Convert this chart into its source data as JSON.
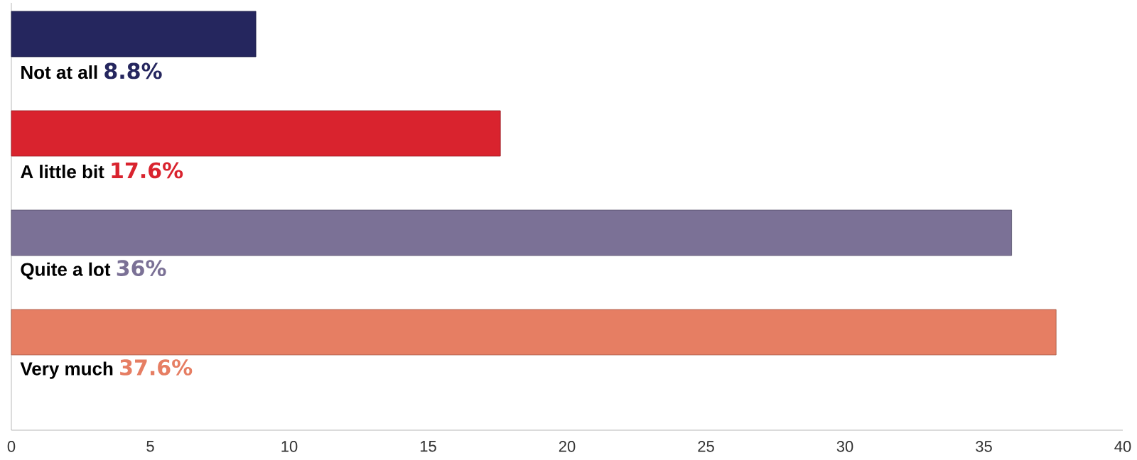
{
  "chart_data": {
    "type": "bar",
    "orientation": "horizontal",
    "categories": [
      "Not at all",
      "A little bit",
      "Quite a lot",
      "Very much"
    ],
    "values": [
      8.8,
      17.6,
      36,
      37.6
    ],
    "value_labels": [
      "8.8%",
      "17.6%",
      "36%",
      "37.6%"
    ],
    "colors": [
      "#25265e",
      "#d9232e",
      "#7b7196",
      "#e67e63"
    ],
    "xlim": [
      0,
      40
    ],
    "xticks": [
      0,
      5,
      10,
      15,
      20,
      25,
      30,
      35,
      40
    ]
  }
}
